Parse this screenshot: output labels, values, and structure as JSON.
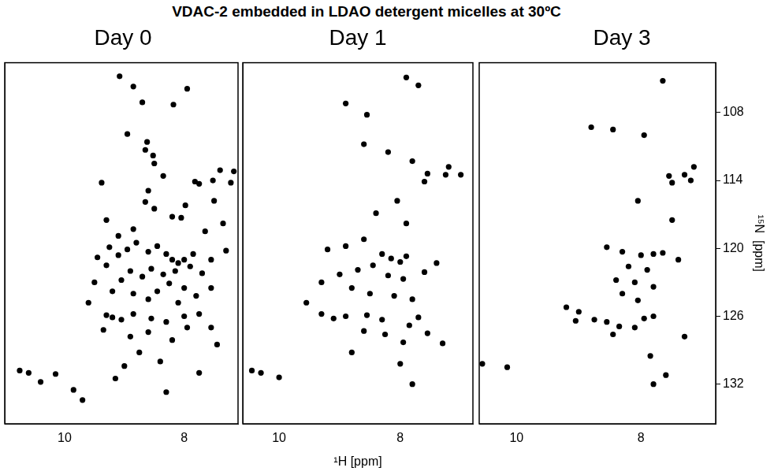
{
  "title": "VDAC-2 embedded in LDAO detergent micelles at 30ºC",
  "chart_data": [
    {
      "type": "scatter",
      "title": "Day 0",
      "color": "#000000",
      "marker": "circle",
      "grid": false,
      "tick_labels": "x",
      "xlim": [
        11.0,
        7.1
      ],
      "xticks": [
        10,
        8
      ],
      "ylim": [
        135.5,
        103.6
      ],
      "yticks": [
        108,
        114,
        120,
        126,
        132
      ],
      "x": [
        9.08,
        8.85,
        7.95,
        8.7,
        8.18,
        8.95,
        8.62,
        8.65,
        8.52,
        8.5,
        7.82,
        7.75,
        7.52,
        7.17,
        7.22,
        7.4,
        8.35,
        7.5,
        8.65,
        9.38,
        8.85,
        8.5,
        8.2,
        8.05,
        7.98,
        8.6,
        9.1,
        9.3,
        7.65,
        7.35,
        9.25,
        9.1,
        8.95,
        8.8,
        8.6,
        8.45,
        8.3,
        8.2,
        8.1,
        8.0,
        7.9,
        7.85,
        8.15,
        8.35,
        8.55,
        8.7,
        8.9,
        9.05,
        9.3,
        9.45,
        7.7,
        7.55,
        7.3,
        8.25,
        8.45,
        8.0,
        7.8,
        8.6,
        8.85,
        9.2,
        9.5,
        9.6,
        7.55,
        8.1,
        9.3,
        9.2,
        9.05,
        8.85,
        8.55,
        8.3,
        8.0,
        7.75,
        7.95,
        8.6,
        8.9,
        9.35,
        8.2,
        7.55,
        7.45,
        8.75,
        8.4,
        9.0,
        10.75,
        10.6,
        10.4,
        10.15,
        9.85,
        9.7,
        9.15,
        8.3,
        7.75
      ],
      "values": [
        104.8,
        105.7,
        105.9,
        107.1,
        107.3,
        109.9,
        110.6,
        111.3,
        111.8,
        112.5,
        114.1,
        114.3,
        114.0,
        113.2,
        114.2,
        113.1,
        113.6,
        115.8,
        115.9,
        114.2,
        118.3,
        116.5,
        117.2,
        117.3,
        116.2,
        114.9,
        118.9,
        117.5,
        118.5,
        117.8,
        119.9,
        120.6,
        120.1,
        119.5,
        120.3,
        119.8,
        120.5,
        121.0,
        121.3,
        121.0,
        121.6,
        120.5,
        122.0,
        122.3,
        121.8,
        122.5,
        122.0,
        122.8,
        121.5,
        120.8,
        122.2,
        121.0,
        120.2,
        123.1,
        123.8,
        123.5,
        124.2,
        124.5,
        124.0,
        123.8,
        123.0,
        124.8,
        123.5,
        124.8,
        125.9,
        126.1,
        126.3,
        125.8,
        126.2,
        126.5,
        126.0,
        125.8,
        127.0,
        127.4,
        127.8,
        127.2,
        128.1,
        127.0,
        128.5,
        129.2,
        130.0,
        130.4,
        130.8,
        131.0,
        131.8,
        131.1,
        132.5,
        133.4,
        131.5,
        132.7,
        131.0
      ]
    },
    {
      "type": "scatter",
      "title": "Day 1",
      "color": "#000000",
      "marker": "circle",
      "grid": false,
      "tick_labels": "x",
      "x_label": "¹H [ppm]",
      "xlim": [
        10.6,
        6.8
      ],
      "xticks": [
        10,
        8
      ],
      "ylim": [
        135.5,
        103.6
      ],
      "yticks": [
        108,
        114,
        120,
        126,
        132
      ],
      "x": [
        7.9,
        7.7,
        8.9,
        8.55,
        8.6,
        8.2,
        7.8,
        7.2,
        7.25,
        7.55,
        7.6,
        7.0,
        8.05,
        7.9,
        8.4,
        8.6,
        8.9,
        9.2,
        8.3,
        8.15,
        8.0,
        7.9,
        8.45,
        8.7,
        9.0,
        8.2,
        7.95,
        7.6,
        7.4,
        9.3,
        8.8,
        8.5,
        8.1,
        7.8,
        9.55,
        9.3,
        9.1,
        8.9,
        8.55,
        8.3,
        7.7,
        7.85,
        8.6,
        8.25,
        7.95,
        7.55,
        7.3,
        8.8,
        8.0,
        10.45,
        10.3,
        10.0,
        7.8
      ],
      "values": [
        104.9,
        105.6,
        107.2,
        108.2,
        110.8,
        111.5,
        112.3,
        112.8,
        113.5,
        113.4,
        114.1,
        113.5,
        115.8,
        117.8,
        116.9,
        119.2,
        119.8,
        120.1,
        120.5,
        120.9,
        121.2,
        120.7,
        121.5,
        121.9,
        122.3,
        122.4,
        122.7,
        122.1,
        121.3,
        123.0,
        123.5,
        124.0,
        124.2,
        124.5,
        124.8,
        125.8,
        126.2,
        126.0,
        125.9,
        126.3,
        126.1,
        126.8,
        127.3,
        127.6,
        128.3,
        127.5,
        128.4,
        129.2,
        130.2,
        130.8,
        131.0,
        131.4,
        132.0
      ]
    },
    {
      "type": "scatter",
      "title": "Day 3",
      "color": "#000000",
      "marker": "circle",
      "grid": false,
      "y_label": "¹⁵N  [ppm]",
      "xlim": [
        10.6,
        6.8
      ],
      "xticks": [
        10,
        8
      ],
      "ylim": [
        135.5,
        103.6
      ],
      "yticks": [
        108,
        114,
        120,
        126,
        132
      ],
      "x": [
        7.65,
        8.8,
        8.45,
        7.95,
        7.15,
        7.3,
        7.55,
        7.5,
        7.2,
        8.05,
        7.5,
        8.55,
        8.3,
        8.0,
        7.8,
        7.65,
        7.4,
        8.2,
        7.9,
        8.4,
        8.1,
        7.8,
        8.3,
        8.05,
        9.2,
        9.0,
        8.75,
        8.55,
        9.05,
        7.95,
        7.8,
        8.35,
        8.1,
        8.45,
        7.3,
        7.85,
        10.55,
        10.15,
        7.6,
        7.8
      ],
      "values": [
        105.2,
        109.3,
        109.5,
        110.0,
        112.8,
        113.5,
        113.6,
        114.2,
        114.0,
        115.8,
        117.5,
        119.9,
        120.3,
        120.6,
        120.5,
        120.4,
        121.0,
        121.6,
        121.9,
        122.8,
        123.0,
        123.4,
        124.0,
        124.6,
        125.2,
        125.6,
        126.3,
        126.5,
        126.4,
        126.2,
        126.0,
        126.9,
        127.0,
        127.6,
        127.8,
        129.5,
        130.2,
        130.5,
        131.2,
        132.0
      ]
    }
  ]
}
